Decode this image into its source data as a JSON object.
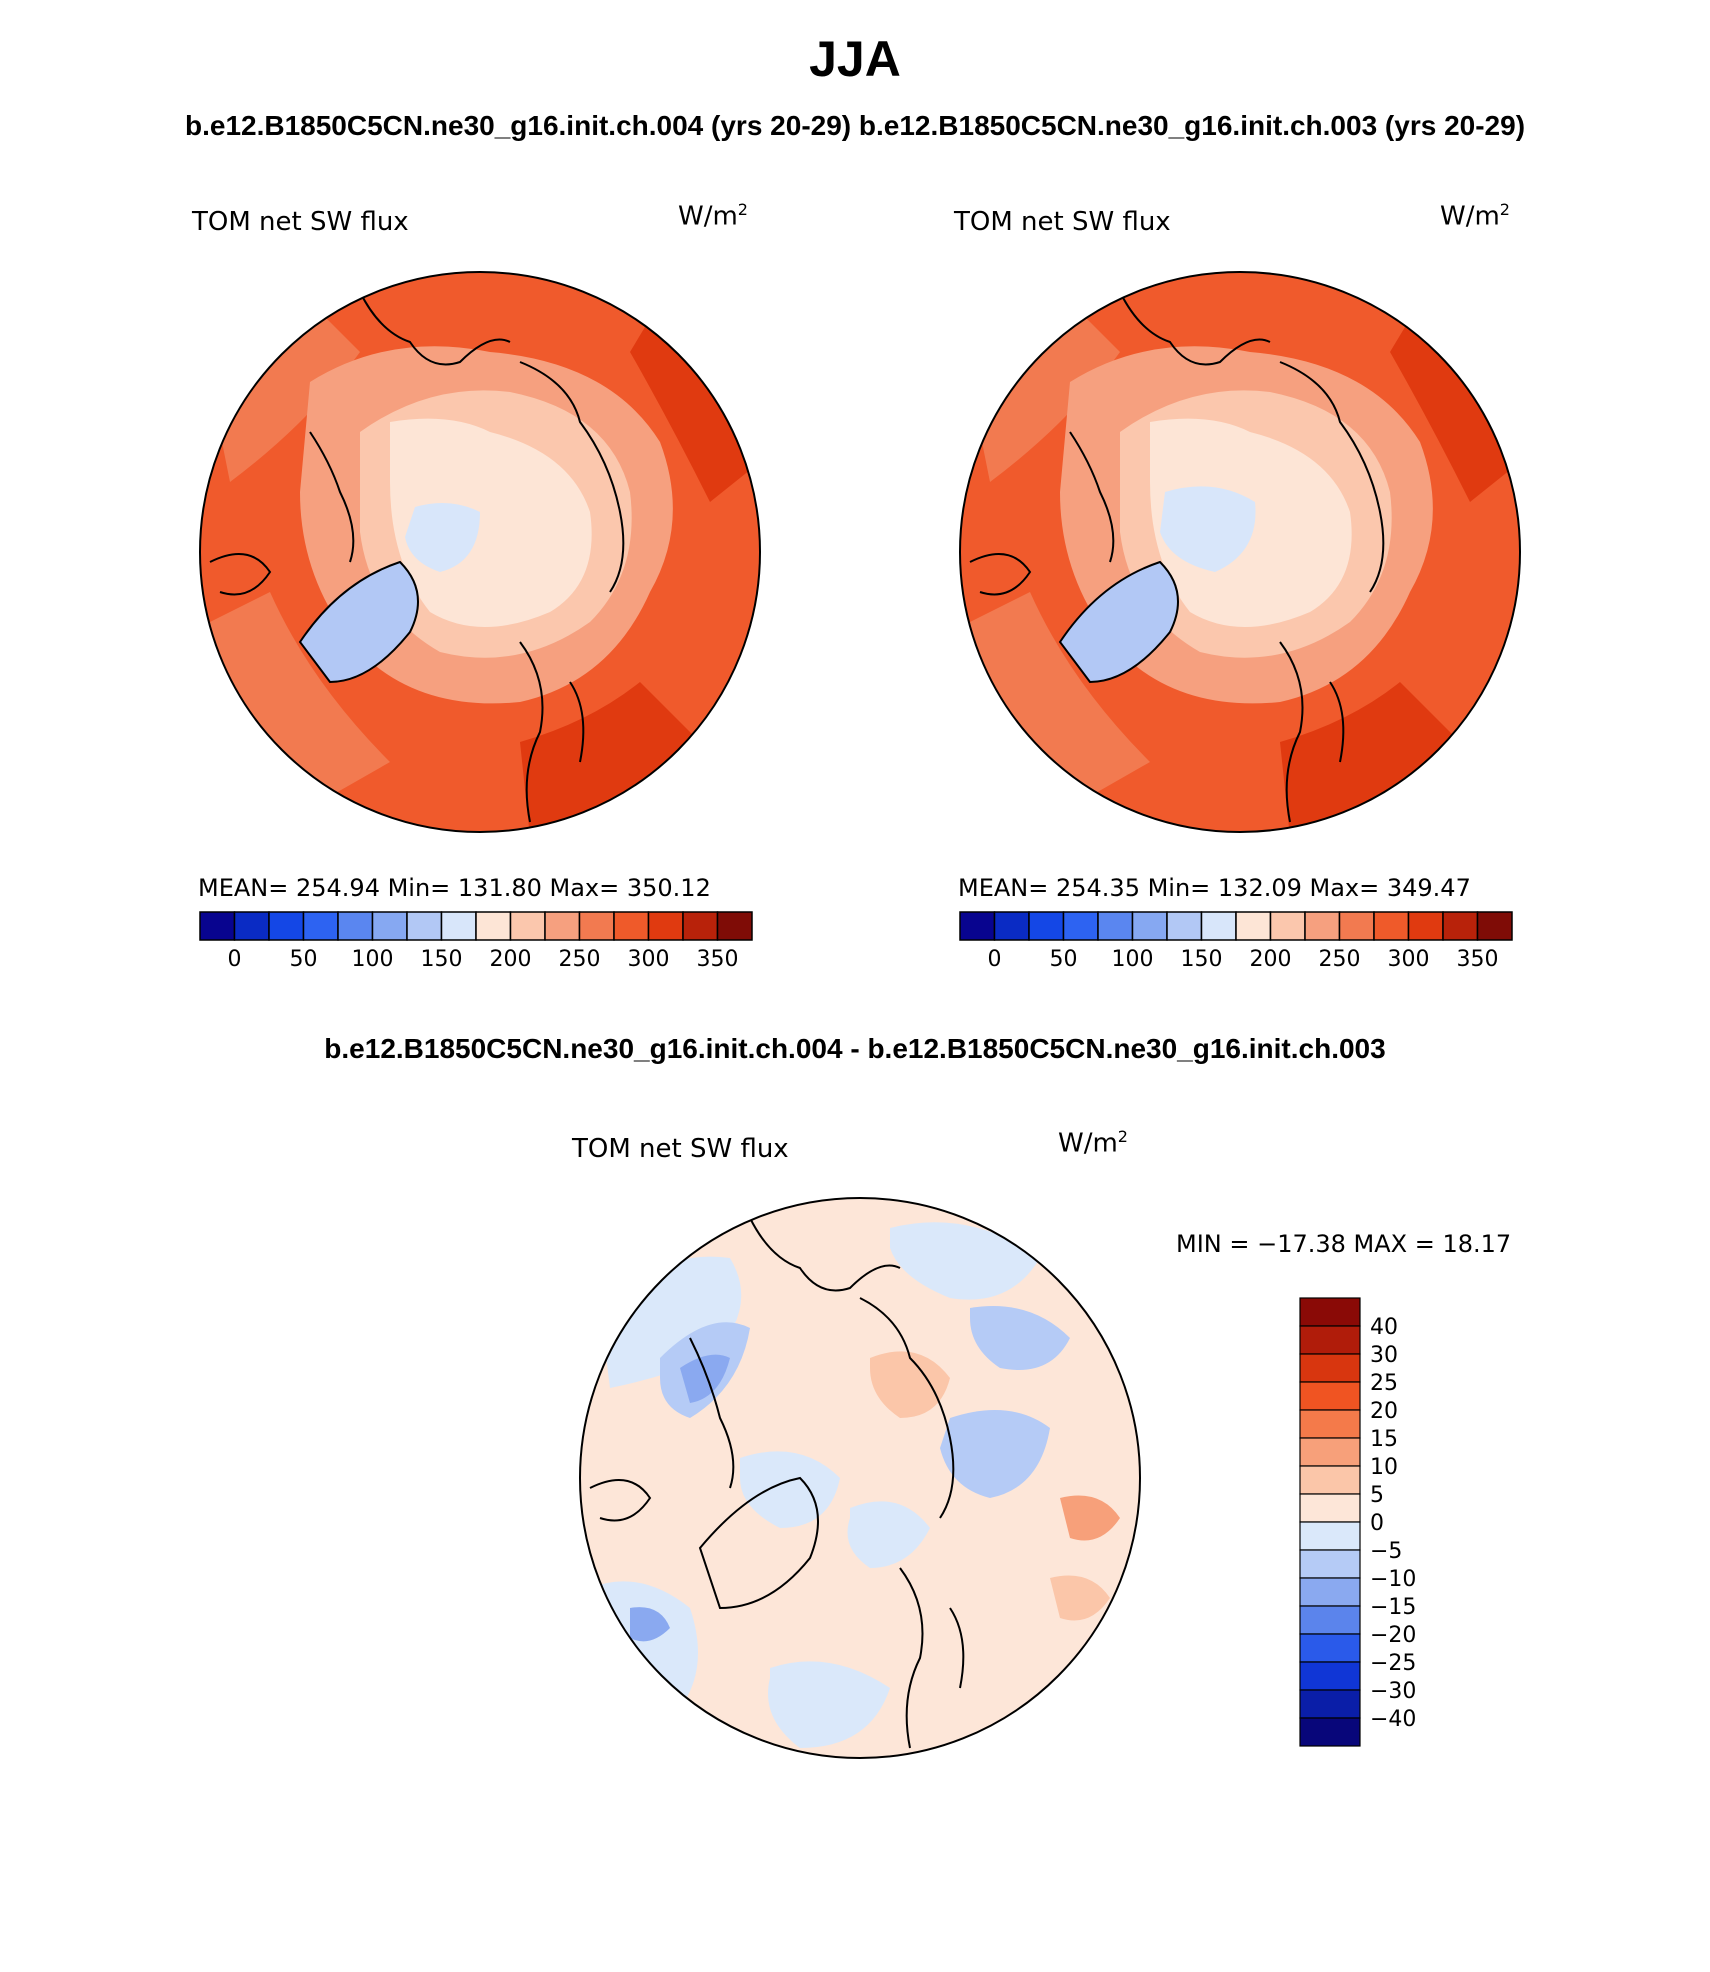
{
  "figure": {
    "title": "JJA",
    "top_subtitle_left": "b.e12.B1850C5CN.ne30_g16.init.ch.004 (yrs 20-29)",
    "top_subtitle_right": "b.e12.B1850C5CN.ne30_g16.init.ch.003 (yrs 20-29)",
    "diff_subtitle": "b.e12.B1850C5CN.ne30_g16.init.ch.004 - b.e12.B1850C5CN.ne30_g16.init.ch.003"
  },
  "panels": [
    {
      "id": "case-004",
      "variable": "TOM net SW flux",
      "units": "W/m",
      "units_exp": "2",
      "stats": "MEAN= 254.94   Min= 131.80   Max= 350.12"
    },
    {
      "id": "case-003",
      "variable": "TOM net SW flux",
      "units": "W/m",
      "units_exp": "2",
      "stats": "MEAN= 254.35   Min= 132.09   Max= 349.47"
    },
    {
      "id": "difference",
      "variable": "TOM net SW flux",
      "units": "W/m",
      "units_exp": "2",
      "stats": "MIN = −17.38 MAX =   18.17"
    }
  ],
  "colorbars": {
    "absolute": {
      "labels": [
        "0",
        "50",
        "100",
        "150",
        "200",
        "250",
        "300",
        "350"
      ],
      "colors": [
        "#08048f",
        "#0a2bc4",
        "#1447e6",
        "#2d63f2",
        "#5a86f0",
        "#86a8f2",
        "#b2c8f5",
        "#d8e6fa",
        "#fde5d6",
        "#fbc7ad",
        "#f6a07f",
        "#f27a50",
        "#ef5a2a",
        "#e03a10",
        "#b8220a",
        "#7f0c06"
      ]
    },
    "difference": {
      "labels": [
        "40",
        "30",
        "25",
        "20",
        "15",
        "10",
        "5",
        "0",
        "−5",
        "−10",
        "−15",
        "−20",
        "−25",
        "−30",
        "−40"
      ],
      "colors": [
        "#8a0a06",
        "#b01c0a",
        "#d8360f",
        "#f05422",
        "#f47a4a",
        "#f7a07a",
        "#fbc6a9",
        "#fde6d8",
        "#dae8fa",
        "#b5cbf6",
        "#8aa9f0",
        "#5b84ec",
        "#2a5aea",
        "#1036d6",
        "#0a1ea8",
        "#08067a"
      ]
    }
  },
  "colors": {
    "land_outline": "#000000",
    "absolute_field_base": "#f05a2c",
    "difference_field_base": "#fde8dc"
  }
}
